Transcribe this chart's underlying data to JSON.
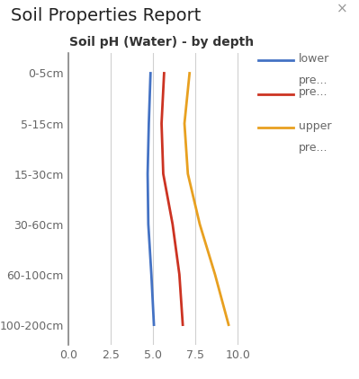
{
  "title_main": "Soil Properties Report",
  "title_chart": "Soil pH (Water) - by depth",
  "close_symbol": "×",
  "depth_labels": [
    "0-5cm",
    "5-15cm",
    "15-30cm",
    "30-60cm",
    "60-100cm",
    "100-200cm"
  ],
  "depth_positions": [
    0,
    1,
    2,
    3,
    4,
    5
  ],
  "xlim": [
    0.0,
    11.0
  ],
  "xticks": [
    0.0,
    2.5,
    5.0,
    7.5,
    10.0
  ],
  "xticklabels": [
    "0.0",
    "2.5",
    "5.0",
    "7.5",
    "10.0"
  ],
  "lower_pre": [
    4.85,
    4.75,
    4.68,
    4.72,
    4.9,
    5.05
  ],
  "pre": [
    5.65,
    5.5,
    5.6,
    6.15,
    6.55,
    6.75
  ],
  "upper_pre": [
    7.15,
    6.85,
    7.05,
    7.75,
    8.65,
    9.45
  ],
  "lower_color": "#4472C4",
  "pre_color": "#CC3322",
  "upper_color": "#E8A020",
  "bg_color": "#FFFFFF",
  "grid_color": "#D0D0D0",
  "line_width": 2.0,
  "legend_line_labels": [
    "lower",
    "pre...",
    "pre...",
    "upper",
    "pre..."
  ],
  "title_fontsize": 14,
  "chart_title_fontsize": 10,
  "tick_fontsize": 9,
  "legend_fontsize": 9
}
